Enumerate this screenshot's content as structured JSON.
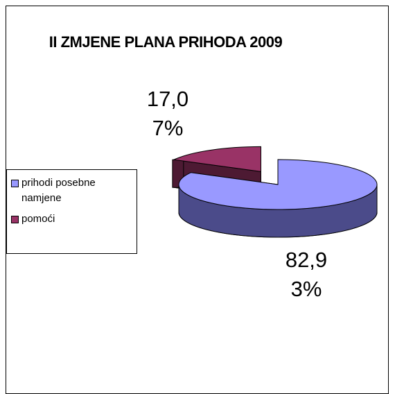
{
  "chart_data": {
    "type": "pie",
    "title": "II ZMJENE PLANA PRIHODA 2009",
    "categories": [
      "prihodi posebne namjene",
      "pomoći"
    ],
    "values": [
      82.93,
      17.07
    ],
    "value_labels": [
      "82,93%",
      "17,07%"
    ],
    "colors": [
      "#9999ff",
      "#993366"
    ],
    "side_colors": [
      "#4b4b8a",
      "#4d1a33"
    ],
    "legend": "left"
  }
}
